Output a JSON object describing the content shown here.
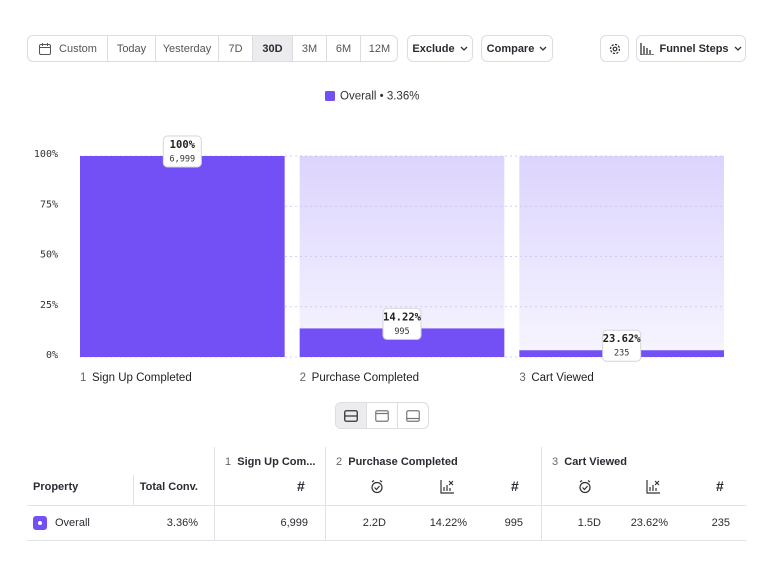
{
  "toolbar": {
    "date_range": [
      "Custom",
      "Today",
      "Yesterday",
      "7D",
      "30D",
      "3M",
      "6M",
      "12M"
    ],
    "exclude": "Exclude",
    "compare": "Compare",
    "funnel_steps": "Funnel Steps"
  },
  "chart_data": {
    "type": "bar",
    "legend": "Overall • 3.36%",
    "color": "#7350f5",
    "step_numbers": [
      "1",
      "2",
      "3"
    ],
    "categories": [
      "Sign Up Completed",
      "Purchase Completed",
      "Cart Viewed"
    ],
    "values": [
      100,
      14.22,
      3.36
    ],
    "step_labels": [
      "100%",
      "14.22%",
      "23.62%"
    ],
    "counts": [
      "6,999",
      "995",
      "235"
    ],
    "ylim": [
      0,
      100
    ],
    "yticks": [
      {
        "value": 0,
        "label": "0%"
      },
      {
        "value": 25,
        "label": "25%"
      },
      {
        "value": 50,
        "label": "50%"
      },
      {
        "value": 75,
        "label": "75%"
      },
      {
        "value": 100,
        "label": "100%"
      }
    ],
    "grid": true
  },
  "table": {
    "step_headers": [
      {
        "number": "1",
        "name": "Sign Up Com..."
      },
      {
        "number": "2",
        "name": "Purchase Completed"
      },
      {
        "number": "3",
        "name": "Cart Viewed"
      }
    ],
    "columns": [
      "Property",
      "Total Conv."
    ],
    "hash": "#",
    "rows": [
      {
        "property": "Overall",
        "total_conv": "3.36%",
        "cells": [
          "6,999",
          "2.2D",
          "14.22%",
          "995",
          "1.5D",
          "23.62%",
          "235"
        ]
      }
    ]
  }
}
